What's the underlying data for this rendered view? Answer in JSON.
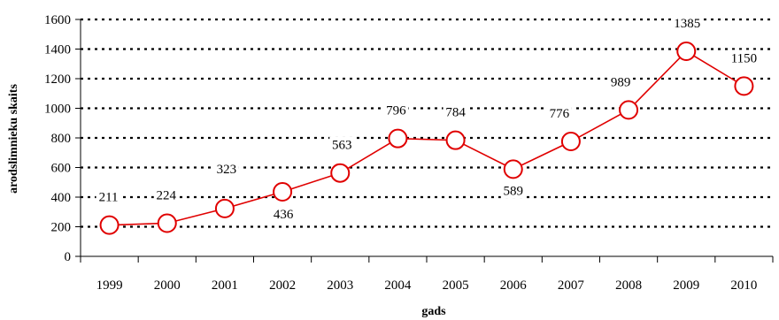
{
  "chart_data": {
    "type": "line",
    "title": "",
    "xlabel": "gads",
    "ylabel": "arodslimnieku skaits",
    "categories": [
      "1999",
      "2000",
      "2001",
      "2002",
      "2003",
      "2004",
      "2005",
      "2006",
      "2007",
      "2008",
      "2009",
      "2010"
    ],
    "series": [
      {
        "values": [
          211,
          224,
          323,
          436,
          563,
          796,
          784,
          589,
          776,
          989,
          1385,
          1150
        ],
        "labels": [
          "211",
          "224",
          "323",
          "436",
          "563",
          "796",
          "784",
          "589",
          "776",
          "989",
          "1385",
          "1150"
        ],
        "color": "#e00000"
      }
    ],
    "ylim": [
      0,
      1600
    ],
    "yticks": [
      "0",
      "200",
      "400",
      "600",
      "800",
      "1000",
      "1200",
      "1400",
      "1600"
    ],
    "grid": "horizontal dotted",
    "legend": "none"
  }
}
